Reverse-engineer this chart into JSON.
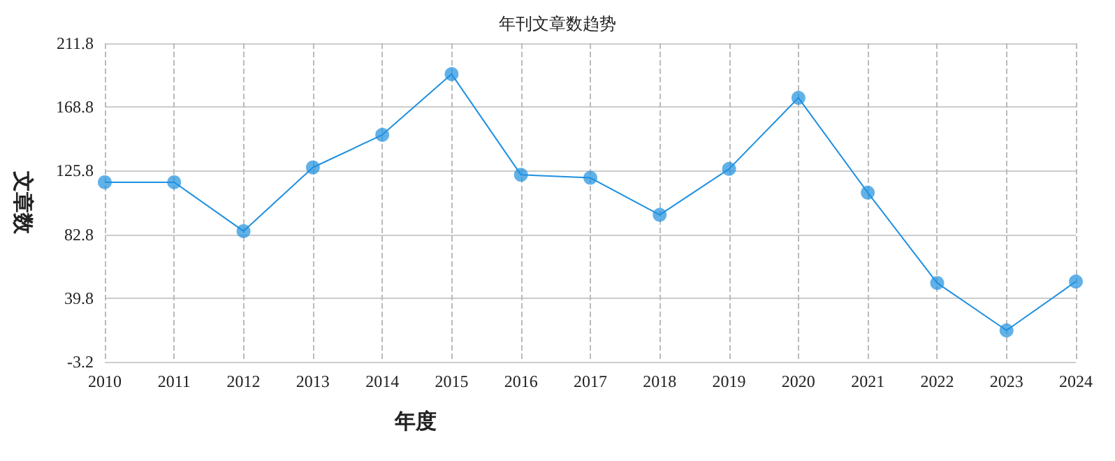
{
  "chart_data": {
    "type": "line",
    "title": "年刊文章数趋势",
    "xlabel": "年度",
    "ylabel": "文章数",
    "categories": [
      "2010",
      "2011",
      "2012",
      "2013",
      "2014",
      "2015",
      "2016",
      "2017",
      "2018",
      "2019",
      "2020",
      "2021",
      "2022",
      "2023",
      "2024"
    ],
    "series": [
      {
        "color": "#1e90e0",
        "values": [
          118,
          118,
          85,
          128,
          150,
          191,
          123,
          121,
          96,
          127,
          175,
          111,
          50,
          18,
          51
        ]
      }
    ],
    "ylim": [
      -3.2,
      211.8
    ],
    "yticks": [
      -3.2,
      39.8,
      82.8,
      125.8,
      168.8,
      211.8
    ],
    "grid": true,
    "marker": "circle",
    "line_style": "solid"
  }
}
